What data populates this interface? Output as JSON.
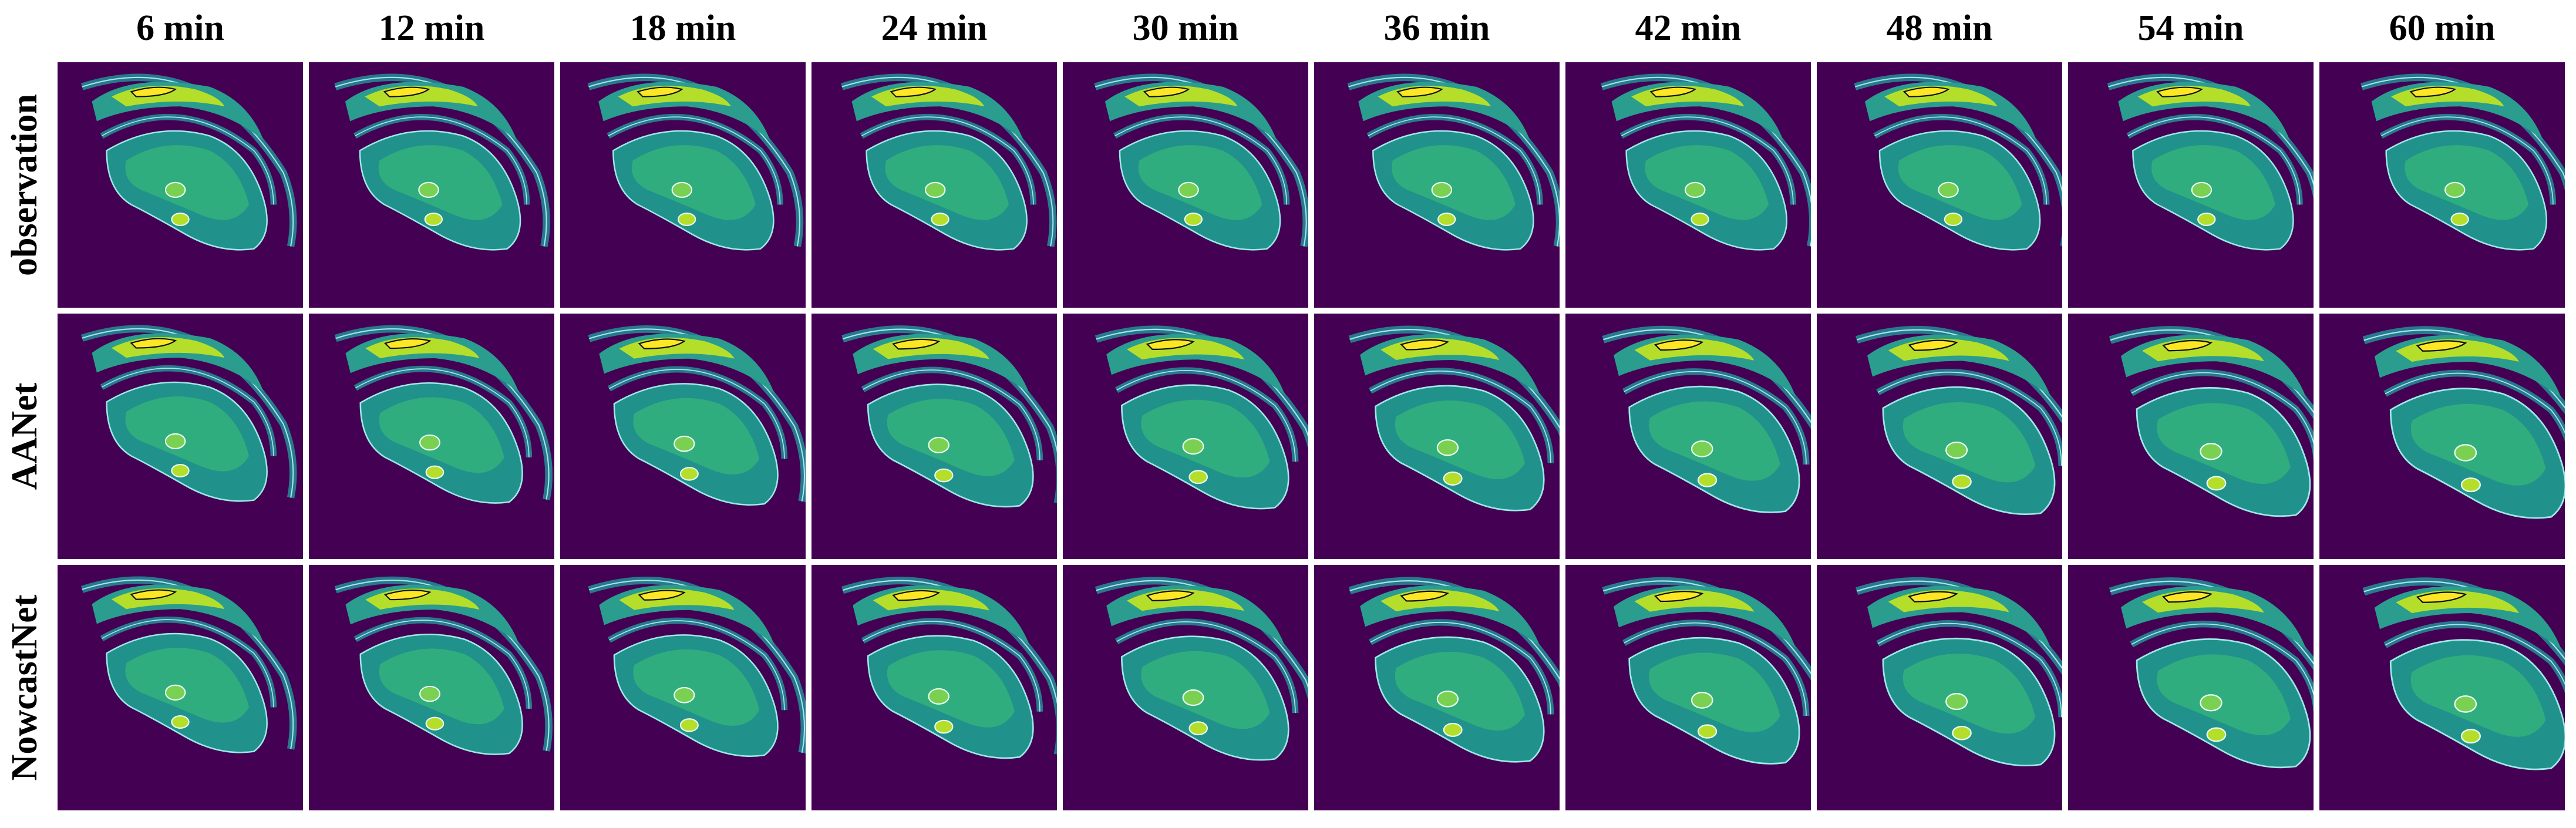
{
  "columns": [
    "6 min",
    "12 min",
    "18 min",
    "24 min",
    "30 min",
    "36 min",
    "42 min",
    "48 min",
    "54 min",
    "60 min"
  ],
  "rows": [
    "observation",
    "AANet",
    "NowcastNet"
  ]
}
